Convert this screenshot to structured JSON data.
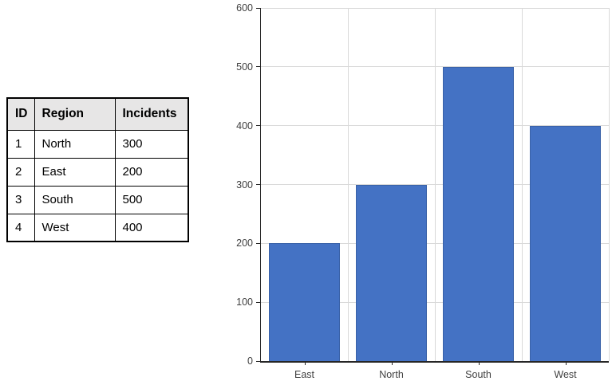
{
  "table": {
    "columns": [
      "ID",
      "Region",
      "Incidents"
    ],
    "rows": [
      [
        "1",
        "North",
        "300"
      ],
      [
        "2",
        "East",
        "200"
      ],
      [
        "3",
        "South",
        "500"
      ],
      [
        "4",
        "West",
        "400"
      ]
    ]
  },
  "chart_data": {
    "type": "bar",
    "categories": [
      "East",
      "North",
      "South",
      "West"
    ],
    "values": [
      200,
      300,
      500,
      400
    ],
    "title": "",
    "xlabel": "",
    "ylabel": "",
    "ylim": [
      0,
      600
    ],
    "ytick_step": 100,
    "grid": true,
    "legend": false,
    "bar_color": "#4472C4",
    "bar_border_color": "#3A62A8",
    "gridline_color": "#D9D9D9",
    "axis_color": "#262626",
    "label_color": "#404040"
  }
}
